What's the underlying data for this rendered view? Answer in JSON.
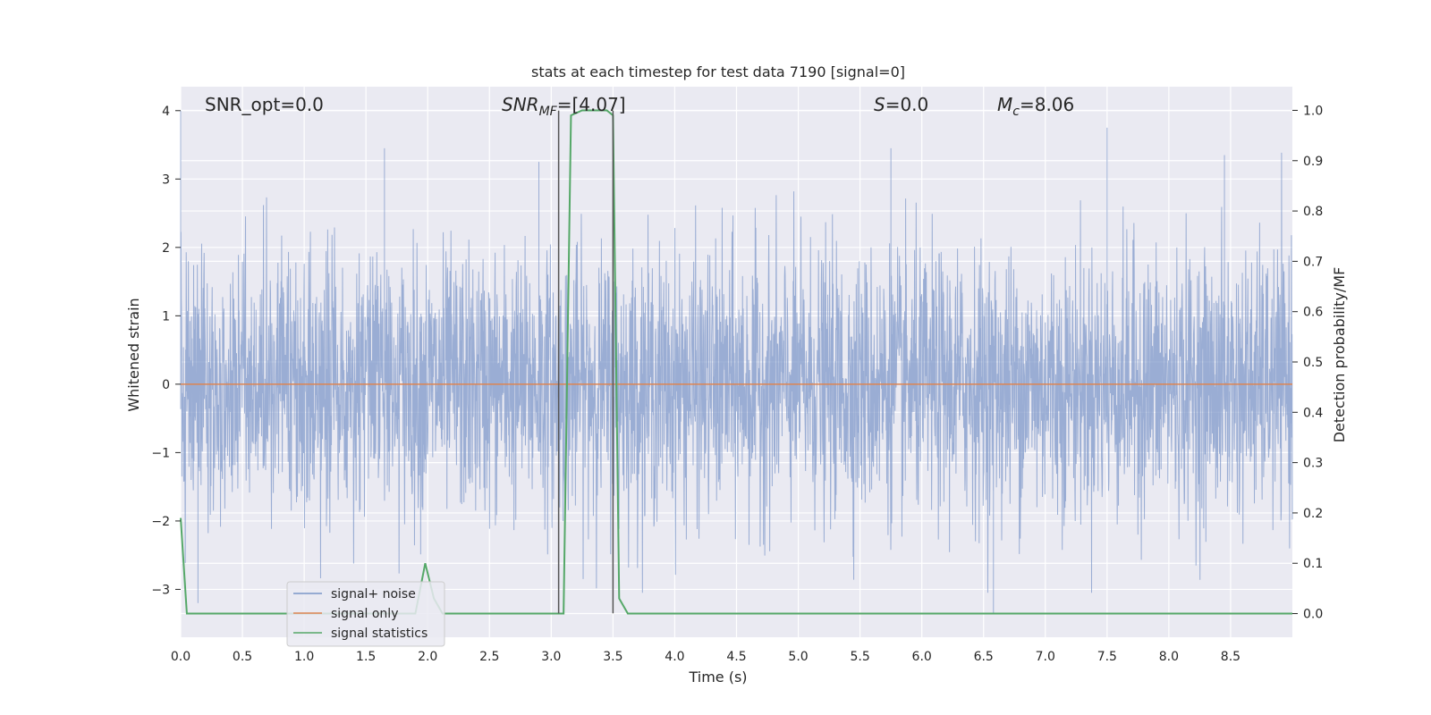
{
  "chart_data": {
    "type": "line",
    "title": "stats at each timestep for test data 7190 [signal=0]",
    "xlabel": "Time (s)",
    "ylabel": "Whitened strain",
    "y2label": "Detection probability/MF",
    "xlim": [
      0,
      9.0
    ],
    "ylim": [
      -3.7,
      4.35
    ],
    "y2lim": [
      -0.047,
      1.047
    ],
    "x_ticks": [
      0.0,
      0.5,
      1.0,
      1.5,
      2.0,
      2.5,
      3.0,
      3.5,
      4.0,
      4.5,
      5.0,
      5.5,
      6.0,
      6.5,
      7.0,
      7.5,
      8.0,
      8.5
    ],
    "x_tick_labels": [
      "0.0",
      "0.5",
      "1.0",
      "1.5",
      "2.0",
      "2.5",
      "3.0",
      "3.5",
      "4.0",
      "4.5",
      "5.0",
      "5.5",
      "6.0",
      "6.5",
      "7.0",
      "7.5",
      "8.0",
      "8.5"
    ],
    "y_ticks": [
      4,
      3,
      2,
      1,
      0,
      -1,
      -2,
      -3
    ],
    "y_tick_labels": [
      "4",
      "3",
      "2",
      "1",
      "0",
      "−1",
      "−2",
      "−3"
    ],
    "y2_ticks": [
      1.0,
      0.9,
      0.8,
      0.7,
      0.6,
      0.5,
      0.4,
      0.3,
      0.2,
      0.1,
      0.0
    ],
    "y2_tick_labels": [
      "1.0",
      "0.9",
      "0.8",
      "0.7",
      "0.6",
      "0.5",
      "0.4",
      "0.3",
      "0.2",
      "0.1",
      "0.0"
    ],
    "grid": true,
    "legend_position": "lower-left",
    "series": [
      {
        "name": "signal+ noise",
        "color": "#7b96c8",
        "axis": "left",
        "description_x_range": [
          0,
          9.0
        ],
        "amplitude_envelope_typical": [
          -2.2,
          2.6
        ],
        "amplitude_extremes": [
          -3.35,
          4.0
        ],
        "notable_peaks": [
          {
            "x": 0.0,
            "y": 4.0
          },
          {
            "x": 0.14,
            "y": -3.2
          },
          {
            "x": 1.65,
            "y": 3.45
          },
          {
            "x": 2.9,
            "y": 3.25
          },
          {
            "x": 5.75,
            "y": 3.45
          },
          {
            "x": 6.58,
            "y": -3.35
          },
          {
            "x": 7.5,
            "y": 3.75
          },
          {
            "x": 8.45,
            "y": 3.35
          }
        ]
      },
      {
        "name": "signal only",
        "color": "#dd8452",
        "axis": "left",
        "x": [
          0,
          9.0
        ],
        "y": [
          0,
          0
        ]
      },
      {
        "name": "signal statistics",
        "color": "#55a868",
        "axis": "right",
        "x": [
          0.0,
          0.05,
          0.12,
          3.05,
          3.1,
          3.16,
          3.25,
          3.45,
          3.5,
          3.55,
          3.62,
          1.9,
          1.98,
          2.05,
          2.12
        ],
        "y": [
          0.19,
          0.0,
          0.0,
          0.0,
          0.0,
          0.99,
          1.0,
          1.0,
          0.99,
          0.03,
          0.0,
          0.0,
          0.1,
          0.03,
          0.0
        ],
        "points": [
          [
            0.0,
            0.19
          ],
          [
            0.05,
            0.0
          ],
          [
            0.12,
            0.0
          ],
          [
            1.9,
            0.0
          ],
          [
            1.98,
            0.1
          ],
          [
            2.05,
            0.03
          ],
          [
            2.12,
            0.0
          ],
          [
            3.05,
            0.0
          ],
          [
            3.1,
            0.0
          ],
          [
            3.16,
            0.99
          ],
          [
            3.25,
            1.0
          ],
          [
            3.45,
            1.0
          ],
          [
            3.5,
            0.99
          ],
          [
            3.55,
            0.03
          ],
          [
            3.62,
            0.0
          ],
          [
            9.0,
            0.0
          ]
        ]
      }
    ],
    "vertical_markers": [
      {
        "x": 3.06,
        "y_range": [
          -3.35,
          4.0
        ],
        "color": "#555555"
      },
      {
        "x": 3.5,
        "y_range": [
          -3.35,
          4.0
        ],
        "color": "#555555"
      }
    ],
    "annotations": [
      {
        "text": "SNR_opt=0.0",
        "x": 0.2,
        "y": 4.1
      },
      {
        "text": "SNR_MF=[4.07]",
        "x": 2.6,
        "y": 4.1
      },
      {
        "text": "S=0.0",
        "x": 5.6,
        "y": 4.1
      },
      {
        "text": "M_c=8.06",
        "x": 6.6,
        "y": 4.1
      }
    ],
    "colors": {
      "plot_bg": "#eaeaf2",
      "grid": "#ffffff",
      "text": "#262626"
    }
  }
}
